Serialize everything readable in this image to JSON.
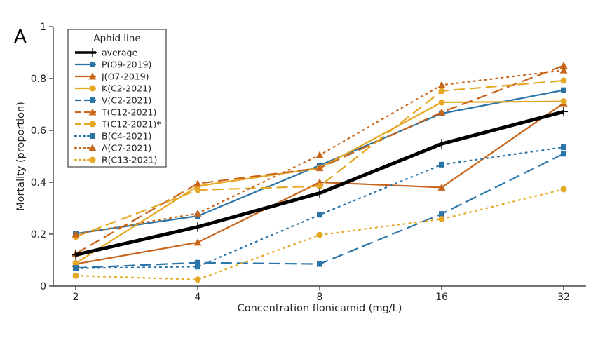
{
  "panel_label": "A",
  "colors": {
    "black": "#000000",
    "blue": "#2a74a8",
    "orange": "#c8651b",
    "gold": "#e5a823"
  },
  "chart_data": {
    "type": "line",
    "xlabel": "Concentration flonicamid (mg/L)",
    "ylabel": "Mortality (proportion)",
    "x_scale": "log2",
    "x": [
      2,
      4,
      8,
      16,
      32
    ],
    "x_tick_labels": [
      "2",
      "4",
      "8",
      "16",
      "32"
    ],
    "ylim": [
      0,
      1
    ],
    "y_ticks": [
      0,
      0.2,
      0.4,
      0.6,
      0.8,
      1
    ],
    "y_tick_labels": [
      "0",
      "0.2",
      "0.4",
      "0.6",
      "0.8",
      "1"
    ],
    "grid": false,
    "legend": {
      "title": "Aphid line",
      "position": "top-left"
    },
    "series": [
      {
        "name": "average",
        "color": "#000000",
        "dash": "solid",
        "marker": "plus",
        "width": 5,
        "values": [
          0.12,
          0.228,
          0.358,
          0.548,
          0.672
        ]
      },
      {
        "name": "P(O9-2019)",
        "color": "#2a74a8",
        "dash": "solid",
        "marker": "square",
        "width": 2.2,
        "values": [
          0.202,
          0.27,
          0.465,
          0.665,
          0.755
        ]
      },
      {
        "name": "J(O7-2019)",
        "color": "#c8651b",
        "dash": "solid",
        "marker": "triangle",
        "width": 2.2,
        "values": [
          0.085,
          0.168,
          0.4,
          0.38,
          0.705
        ]
      },
      {
        "name": "K(C2-2021)",
        "color": "#e5a823",
        "dash": "solid",
        "marker": "circle",
        "width": 2.2,
        "values": [
          0.088,
          0.385,
          0.455,
          0.708,
          0.712
        ]
      },
      {
        "name": "V(C2-2021)",
        "color": "#2a74a8",
        "dash": "dash",
        "marker": "square",
        "width": 2.2,
        "values": [
          0.07,
          0.09,
          0.085,
          0.278,
          0.51
        ]
      },
      {
        "name": "T(C12-2021)",
        "color": "#c8651b",
        "dash": "dash",
        "marker": "triangle",
        "width": 2.2,
        "values": [
          0.125,
          0.395,
          0.455,
          0.67,
          0.85
        ]
      },
      {
        "name": "T(C12-2021)*",
        "color": "#e5a823",
        "dash": "dash",
        "marker": "circle",
        "width": 2.2,
        "values": [
          0.19,
          0.37,
          0.385,
          0.752,
          0.792
        ]
      },
      {
        "name": "B(C4-2021)",
        "color": "#2a74a8",
        "dash": "dot",
        "marker": "square",
        "width": 2.2,
        "values": [
          0.068,
          0.075,
          0.275,
          0.468,
          0.535
        ]
      },
      {
        "name": "A(C7-2021)",
        "color": "#c8651b",
        "dash": "dot",
        "marker": "triangle",
        "width": 2.2,
        "values": [
          0.2,
          0.28,
          0.505,
          0.775,
          0.832
        ]
      },
      {
        "name": "R(C13-2021)",
        "color": "#e5a823",
        "dash": "dot",
        "marker": "circle",
        "width": 2.2,
        "values": [
          0.04,
          0.025,
          0.197,
          0.258,
          0.373
        ]
      }
    ]
  }
}
